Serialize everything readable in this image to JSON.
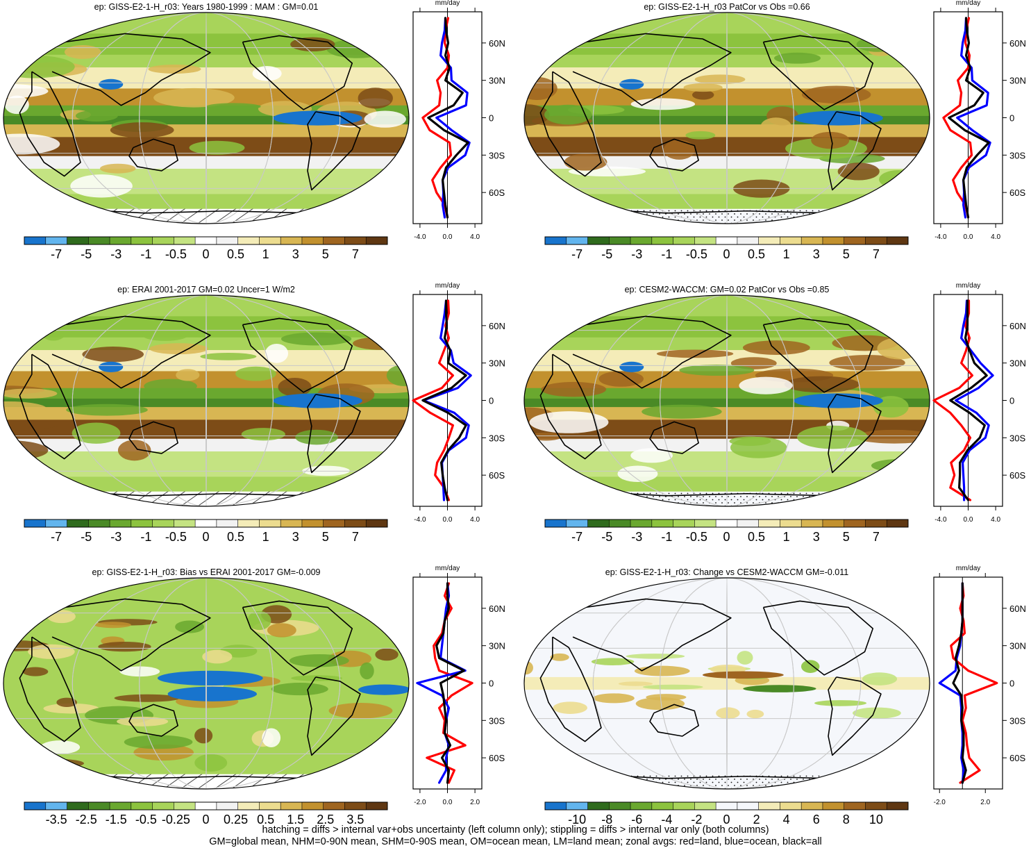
{
  "figure": {
    "zonal_units": "mm/day",
    "lat_labels": [
      "60N",
      "30N",
      "0",
      "30S",
      "60S"
    ],
    "footer_lines": [
      "hatching = diffs > internal var+obs uncertainty (left column only); stippling = diffs > internal var only (both columns)",
      "GM=global mean, NHM=0-90N mean, SHM=0-90S mean, OM=ocean mean, LM=land mean; zonal avgs: red=land, blue=ocean, black=all"
    ]
  },
  "palettes": {
    "brown_green": [
      "#1874cd",
      "#62b5ee",
      "#2f6b1d",
      "#4a8a26",
      "#6aa82f",
      "#8cc33e",
      "#a8d45a",
      "#c4e382",
      "#ffffff",
      "#f2f2f2",
      "#f4ecb8",
      "#ecdc8f",
      "#d8b653",
      "#c2912e",
      "#9f6520",
      "#7d4c17",
      "#5f3712"
    ],
    "change": [
      "#1874cd",
      "#62b5ee",
      "#2f6b1d",
      "#4a8a26",
      "#6aa82f",
      "#8cc33e",
      "#a8d45a",
      "#c4e382",
      "#f5f7fb",
      "#f5f7fb",
      "#f4ecb8",
      "#ecdc8f",
      "#d8b653",
      "#c2912e",
      "#9f6520",
      "#7d4c17",
      "#5f3712"
    ],
    "series_colors": {
      "land": "#ff0000",
      "ocean": "#0000ff",
      "all": "#000000"
    }
  },
  "chart_data": [
    {
      "type": "heatmap",
      "title": "ep: GISS-E2-1-H_r03: Years 1980-1999 : MAM : GM=0.01",
      "map_style": "fields",
      "colorbar_labels": [
        "-7",
        "-5",
        "-3",
        "-1",
        "-0.5",
        "0",
        "0.5",
        "1",
        "3",
        "5",
        "7"
      ],
      "zonal": {
        "x_ticks": [
          "-4.0",
          "0.0",
          "4.0"
        ],
        "xlim": [
          -5,
          5
        ],
        "ylim": [
          -85,
          85
        ],
        "lat": [
          -80,
          -70,
          -60,
          -50,
          -40,
          -30,
          -20,
          -10,
          0,
          10,
          20,
          30,
          40,
          50,
          60,
          70,
          80
        ],
        "series": [
          {
            "name": "red=land",
            "values": [
              0,
              -0.4,
              -1.6,
              -2.2,
              -1.0,
              0.5,
              0.3,
              -2.6,
              -3.6,
              -1.2,
              -1.0,
              -1.5,
              0,
              0.2,
              -0.4,
              -0.3,
              0.1
            ]
          },
          {
            "name": "blue=ocean",
            "values": [
              -0.4,
              -0.7,
              -0.6,
              -0.7,
              0.1,
              2.6,
              3.2,
              0.6,
              -1.6,
              2.7,
              2.9,
              0.6,
              0.5,
              -1.0,
              -0.8,
              -0.4,
              -0.3
            ]
          },
          {
            "name": "black=all",
            "values": [
              0,
              -0.3,
              -0.5,
              -0.7,
              -0.2,
              1.3,
              3.0,
              -0.5,
              -2.8,
              0.9,
              2.2,
              -0.3,
              0.3,
              -0.3,
              0.1,
              -0.2,
              -0.3
            ]
          }
        ]
      }
    },
    {
      "type": "heatmap",
      "title": "ep: GISS-E2-1-H_r03 PatCor vs Obs =0.66",
      "map_style": "fields",
      "colorbar_labels": [
        "-7",
        "-5",
        "-3",
        "-1",
        "-0.5",
        "0",
        "0.5",
        "1",
        "3",
        "5",
        "7"
      ],
      "zonal": {
        "x_ticks": [
          "-4.0",
          "0.0",
          "4.0"
        ],
        "xlim": [
          -5,
          5
        ],
        "ylim": [
          -85,
          85
        ],
        "lat": [
          -80,
          -70,
          -60,
          -50,
          -40,
          -30,
          -20,
          -10,
          0,
          10,
          20,
          30,
          40,
          50,
          60,
          70,
          80
        ],
        "series": [
          {
            "name": "red=land",
            "values": [
              0,
              -0.4,
              -1.6,
              -2.2,
              -1.0,
              0.5,
              0.3,
              -2.6,
              -3.6,
              -1.2,
              -1.0,
              -1.5,
              0,
              0.2,
              -0.4,
              -0.3,
              0.1
            ]
          },
          {
            "name": "blue=ocean",
            "values": [
              -0.4,
              -0.7,
              -0.6,
              -0.7,
              0.1,
              2.6,
              3.2,
              0.6,
              -1.6,
              2.7,
              2.9,
              0.6,
              0.5,
              -1.0,
              -0.8,
              -0.4,
              -0.3
            ]
          },
          {
            "name": "black=all",
            "values": [
              0,
              -0.3,
              -0.5,
              -0.7,
              -0.2,
              1.3,
              3.0,
              -0.5,
              -2.8,
              0.9,
              2.2,
              -0.3,
              0.3,
              -0.3,
              0.1,
              -0.2,
              -0.3
            ]
          }
        ]
      }
    },
    {
      "type": "heatmap",
      "title": "ep: ERAI 2001-2017 GM=0.02 Uncer=1 W/m2",
      "map_style": "fields",
      "colorbar_labels": [
        "-7",
        "-5",
        "-3",
        "-1",
        "-0.5",
        "0",
        "0.5",
        "1",
        "3",
        "5",
        "7"
      ],
      "zonal": {
        "x_ticks": [
          "-4.0",
          "0.0",
          "4.0"
        ],
        "xlim": [
          -5,
          5
        ],
        "ylim": [
          -85,
          85
        ],
        "lat": [
          -80,
          -70,
          -60,
          -50,
          -40,
          -30,
          -20,
          -10,
          0,
          10,
          20,
          30,
          40,
          50,
          60,
          70,
          80
        ],
        "series": [
          {
            "name": "red=land",
            "values": [
              0.2,
              -0.5,
              -1.8,
              -1.5,
              -0.5,
              0.2,
              0.8,
              -2.5,
              -5.0,
              -0.8,
              0.8,
              -1.2,
              -0.5,
              0.2,
              -0.3,
              0.2,
              0.1
            ]
          },
          {
            "name": "blue=ocean",
            "values": [
              -0.5,
              -0.6,
              -0.7,
              -0.8,
              0.2,
              2.7,
              3.1,
              1.0,
              -3.5,
              1.5,
              3.4,
              0.9,
              0.5,
              -1.0,
              -0.7,
              -0.4,
              -0.2
            ]
          },
          {
            "name": "black=all",
            "values": [
              0,
              -0.4,
              -0.7,
              -0.9,
              0.1,
              1.7,
              2.7,
              0.1,
              -3.6,
              0.6,
              2.7,
              0.1,
              0.4,
              -0.4,
              -0.1,
              -0.2,
              -0.2
            ]
          }
        ]
      }
    },
    {
      "type": "heatmap",
      "title": "ep: CESM2-WACCM: GM=0.02 PatCor vs Obs =0.85",
      "map_style": "fields",
      "colorbar_labels": [
        "-7",
        "-5",
        "-3",
        "-1",
        "-0.5",
        "0",
        "0.5",
        "1",
        "3",
        "5",
        "7"
      ],
      "zonal": {
        "x_ticks": [
          "-4.0",
          "0.0",
          "4.0"
        ],
        "xlim": [
          -5,
          5
        ],
        "ylim": [
          -85,
          85
        ],
        "lat": [
          -80,
          -70,
          -60,
          -50,
          -40,
          -30,
          -20,
          -10,
          0,
          10,
          20,
          30,
          40,
          50,
          60,
          70,
          80
        ],
        "series": [
          {
            "name": "red=land",
            "values": [
              0.3,
              -2.6,
              -2.0,
              -2.5,
              -0.6,
              0.3,
              -1.0,
              -2.6,
              -5.0,
              -1.3,
              0.6,
              -1.0,
              -0.3,
              0.2,
              -0.4,
              0.1,
              0.1
            ]
          },
          {
            "name": "blue=ocean",
            "values": [
              -0.6,
              -0.6,
              -0.7,
              -0.8,
              0.2,
              2.5,
              3.0,
              1.2,
              -1.8,
              1.5,
              3.6,
              1.8,
              0.4,
              -1.0,
              -0.7,
              -0.3,
              -0.2
            ]
          },
          {
            "name": "black=all",
            "values": [
              0,
              -1.3,
              -1.2,
              -1.2,
              -0.1,
              1.7,
              2.4,
              0.2,
              -2.6,
              0.4,
              2.7,
              0.9,
              0.2,
              -0.4,
              -0.1,
              -0.1,
              -0.1
            ]
          }
        ]
      }
    },
    {
      "type": "heatmap",
      "title": "ep: GISS-E2-1-H_r03: Bias vs ERAI 2001-2017 GM=-0.009",
      "map_style": "bias",
      "colorbar_labels": [
        "-3.5",
        "-2.5",
        "-1.5",
        "-0.5",
        "-0.25",
        "0",
        "0.25",
        "0.5",
        "1.5",
        "2.5",
        "3.5"
      ],
      "zonal": {
        "x_ticks": [
          "-2.0",
          "0.0",
          "2.0"
        ],
        "xlim": [
          -2.5,
          2.5
        ],
        "ylim": [
          -85,
          85
        ],
        "lat": [
          -80,
          -70,
          -60,
          -50,
          -40,
          -30,
          -20,
          -10,
          0,
          10,
          20,
          30,
          40,
          50,
          60,
          70,
          80
        ],
        "series": [
          {
            "name": "red=land",
            "values": [
              0.1,
              0.5,
              -1.5,
              1.3,
              -0.3,
              -0.2,
              -0.6,
              0.3,
              1.8,
              -0.6,
              -0.9,
              -1.0,
              -0.4,
              -0.2,
              0.3,
              -0.2,
              0.1
            ]
          },
          {
            "name": "blue=ocean",
            "values": [
              -0.6,
              -0.1,
              -0.1,
              0.1,
              -0.2,
              -0.1,
              0.1,
              -0.4,
              -2.2,
              1.3,
              -0.5,
              -0.4,
              -0.3,
              -0.2,
              -0.1,
              0.1,
              0
            ]
          },
          {
            "name": "black=all",
            "values": [
              0,
              0.1,
              -0.4,
              0.2,
              -0.2,
              -0.1,
              -0.2,
              -0.3,
              -0.5,
              1.2,
              -0.6,
              -0.8,
              -0.3,
              -0.2,
              0.1,
              0,
              0
            ]
          }
        ]
      }
    },
    {
      "type": "heatmap",
      "title": "ep: GISS-E2-1-H_r03: Change vs CESM2-WACCM GM=-0.011",
      "map_style": "change",
      "colorbar_labels": [
        "-10",
        "-8",
        "-6",
        "-4",
        "-2",
        "0",
        "2",
        "4",
        "6",
        "8",
        "10"
      ],
      "zonal": {
        "x_ticks": [
          "-2.0",
          "2.0"
        ],
        "xlim": [
          -2.5,
          3.5
        ],
        "ylim": [
          -85,
          85
        ],
        "lat": [
          -80,
          -70,
          -60,
          -50,
          -40,
          -30,
          -20,
          -10,
          0,
          10,
          20,
          30,
          40,
          50,
          60,
          70,
          80
        ],
        "series": [
          {
            "name": "red=land",
            "values": [
              -0.2,
              1.5,
              0.6,
              0.4,
              0.3,
              0.0,
              0.3,
              0.2,
              3.0,
              0.5,
              -0.8,
              -1.0,
              0.2,
              0.1,
              -0.2,
              0.1,
              0
            ]
          },
          {
            "name": "blue=ocean",
            "values": [
              0,
              0.1,
              -0.1,
              0,
              0,
              -0.1,
              -0.1,
              -0.2,
              -2.0,
              -0.6,
              -0.5,
              -0.2,
              -0.1,
              0,
              0,
              0,
              0
            ]
          },
          {
            "name": "black=all",
            "values": [
              0,
              0.3,
              0,
              0.1,
              0.1,
              -0.1,
              0,
              -0.1,
              -0.8,
              -0.3,
              -0.6,
              -0.3,
              -0.1,
              0,
              0,
              0,
              0
            ]
          }
        ]
      }
    }
  ]
}
